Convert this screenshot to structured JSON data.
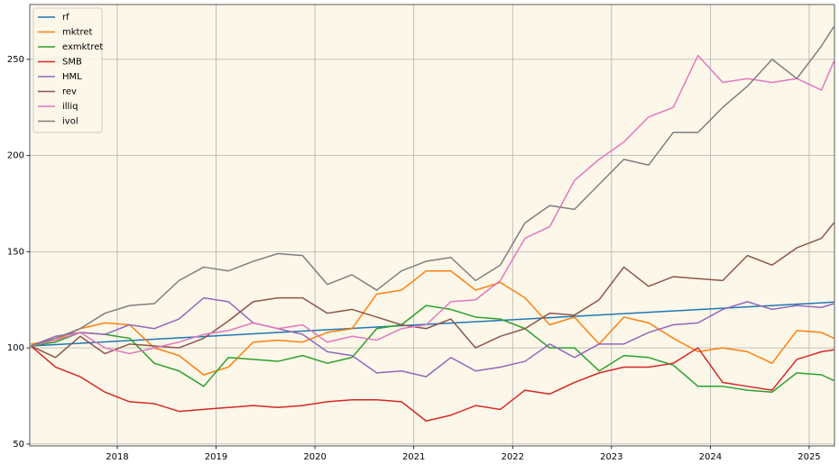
{
  "chart_data": {
    "type": "line",
    "x": [
      2017.125,
      2017.375,
      2017.625,
      2017.875,
      2018.125,
      2018.375,
      2018.625,
      2018.875,
      2019.125,
      2019.375,
      2019.625,
      2019.875,
      2020.125,
      2020.375,
      2020.625,
      2020.875,
      2021.125,
      2021.375,
      2021.625,
      2021.875,
      2022.125,
      2022.375,
      2022.625,
      2022.875,
      2023.125,
      2023.375,
      2023.625,
      2023.875,
      2024.125,
      2024.375,
      2024.625,
      2024.875,
      2025.125,
      2025.25
    ],
    "xlim": [
      2017.115,
      2025.256
    ],
    "xticks": [
      2018,
      2019,
      2020,
      2021,
      2022,
      2023,
      2024,
      2025
    ],
    "ylim": [
      49,
      278.5
    ],
    "yticks": [
      50,
      100,
      150,
      200,
      250
    ],
    "grid": true,
    "legend": "upper-left",
    "series": [
      {
        "name": "rf",
        "color": "#1f77b4",
        "values": [
          101,
          101.7,
          102.4,
          103.1,
          103.8,
          104.5,
          105.2,
          105.9,
          106.6,
          107.3,
          108,
          108.7,
          109.4,
          110.1,
          110.8,
          111.5,
          112.2,
          112.9,
          113.6,
          114.3,
          115,
          115.7,
          116.4,
          117.1,
          117.8,
          118.5,
          119.2,
          119.9,
          120.6,
          121.3,
          122,
          122.7,
          123.4,
          123.8
        ]
      },
      {
        "name": "mktret",
        "color": "#ff7f0e",
        "values": [
          102,
          104,
          110,
          113,
          112,
          100,
          96,
          86,
          90,
          103,
          104,
          103,
          108,
          110,
          128,
          130,
          140,
          140,
          130,
          134,
          126,
          112,
          116,
          102,
          116,
          113,
          105,
          98,
          100,
          98,
          92,
          109,
          108,
          105
        ]
      },
      {
        "name": "exmktret",
        "color": "#2ca02c",
        "values": [
          101,
          103,
          108,
          107,
          105,
          92,
          88,
          80,
          95,
          94,
          93,
          96,
          92,
          95,
          110,
          112,
          122,
          120,
          116,
          115,
          110,
          100,
          100,
          88,
          96,
          95,
          91,
          80,
          80,
          78,
          77,
          87,
          86,
          83
        ]
      },
      {
        "name": "SMB",
        "color": "#d62728",
        "values": [
          101,
          90,
          85,
          77,
          72,
          71,
          67,
          68,
          69,
          70,
          69,
          70,
          72,
          73,
          73,
          72,
          62,
          65,
          70,
          68,
          78,
          76,
          82,
          87,
          90,
          90,
          92,
          100,
          82,
          80,
          78,
          94,
          98,
          99
        ]
      },
      {
        "name": "HML",
        "color": "#9467bd",
        "values": [
          101,
          106,
          108,
          107,
          112,
          110,
          115,
          126,
          124,
          113,
          110,
          107,
          98,
          96,
          87,
          88,
          85,
          95,
          88,
          90,
          93,
          102,
          95,
          102,
          102,
          108,
          112,
          113,
          120,
          124,
          120,
          122,
          121,
          123
        ]
      },
      {
        "name": "rev",
        "color": "#8c564b",
        "values": [
          101,
          95,
          106,
          97,
          102,
          101,
          100,
          105,
          114,
          124,
          126,
          126,
          118,
          120,
          116,
          112,
          110,
          115,
          100,
          106,
          110,
          118,
          117,
          125,
          142,
          132,
          137,
          136,
          135,
          148,
          143,
          152,
          157,
          165
        ]
      },
      {
        "name": "illiq",
        "color": "#e377c2",
        "values": [
          101,
          104,
          108,
          100,
          97,
          100,
          103,
          107,
          109,
          113,
          110,
          112,
          103,
          106,
          104,
          110,
          112,
          124,
          125,
          135,
          157,
          163,
          187,
          198,
          207,
          220,
          225,
          252,
          238,
          240,
          238,
          240,
          234,
          249
        ]
      },
      {
        "name": "ivol",
        "color": "#7f7f7f",
        "values": [
          101,
          105,
          110,
          118,
          122,
          123,
          135,
          142,
          140,
          145,
          149,
          148,
          133,
          138,
          130,
          140,
          145,
          147,
          135,
          143,
          165,
          174,
          172,
          185,
          198,
          195,
          212,
          212,
          225,
          236,
          250,
          240,
          257,
          267
        ]
      }
    ]
  }
}
